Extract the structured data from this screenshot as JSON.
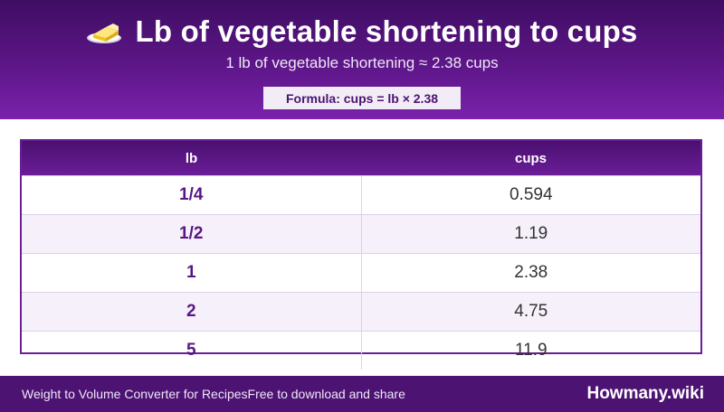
{
  "header": {
    "title": "Lb of vegetable shortening to cups",
    "subtitle": "1 lb of vegetable shortening ≈ 2.38 cups",
    "formula": "Formula: cups = lb × 2.38",
    "icon": "butter-icon"
  },
  "table": {
    "columns": [
      "lb",
      "cups"
    ],
    "rows": [
      {
        "lb": "1/4",
        "cups": "0.594"
      },
      {
        "lb": "1/2",
        "cups": "1.19"
      },
      {
        "lb": "1",
        "cups": "2.38"
      },
      {
        "lb": "2",
        "cups": "4.75"
      },
      {
        "lb": "5",
        "cups": "11.9"
      }
    ]
  },
  "footer": {
    "left_text": "Weight to Volume Converter for Recipes",
    "middle_text": "Free to download and share",
    "brand": "Howmany.wiki"
  },
  "colors": {
    "header_dark": "#3f0d63",
    "header_light": "#7a22ab",
    "accent": "#5a1685",
    "footer": "#4c1373"
  }
}
